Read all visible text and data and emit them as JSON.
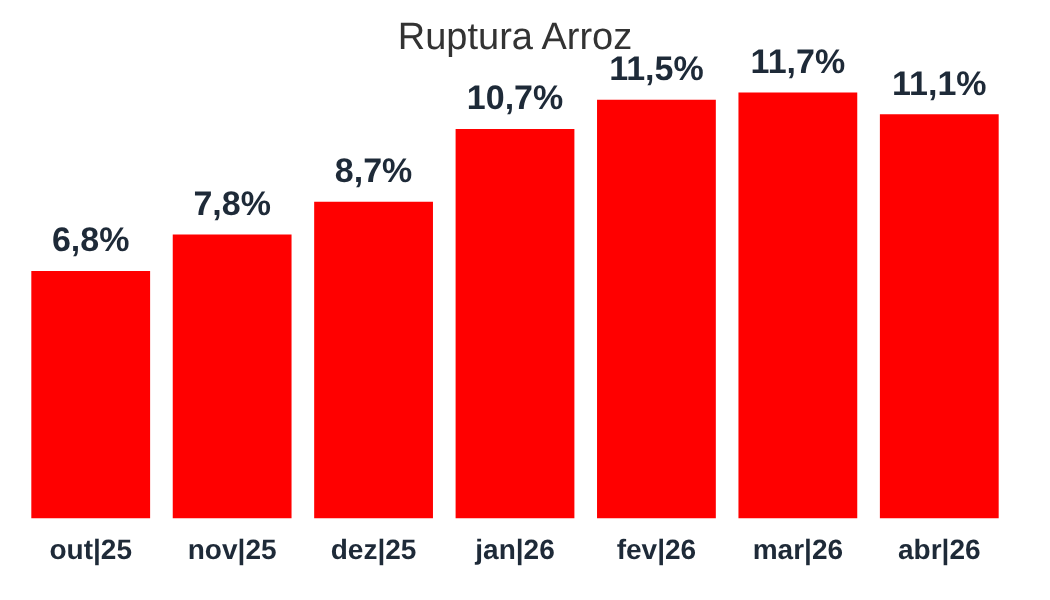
{
  "chart_data": {
    "type": "bar",
    "title": "Ruptura Arroz",
    "categories": [
      "out|25",
      "nov|25",
      "dez|25",
      "jan|26",
      "fev|26",
      "mar|26",
      "abr|26"
    ],
    "values": [
      6.8,
      7.8,
      8.7,
      10.7,
      11.5,
      11.7,
      11.1
    ],
    "value_labels": [
      "6,8%",
      "7,8%",
      "8,7%",
      "10,7%",
      "11,5%",
      "11,7%",
      "11,1%"
    ],
    "color": "#ff0000",
    "grid": false,
    "legend": false
  }
}
